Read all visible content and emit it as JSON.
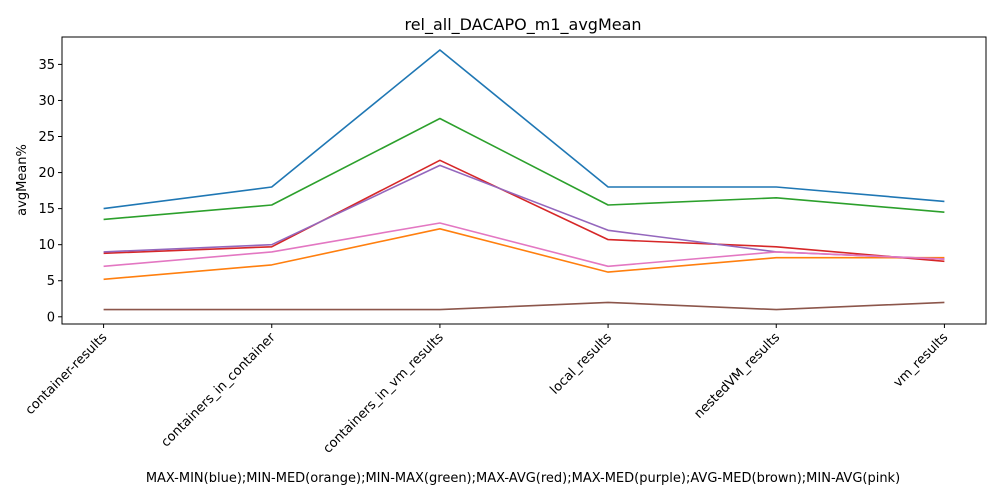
{
  "chart_data": {
    "type": "line",
    "title": "rel_all_DACAPO_m1_avgMean",
    "xlabel": "MAX-MIN(blue);MIN-MED(orange);MIN-MAX(green);MAX-AVG(red);MAX-MED(purple);AVG-MED(brown);MIN-AVG(pink)",
    "ylabel": "avgMean%",
    "categories": [
      "container-results",
      "containers_in_container",
      "containers_in_vm_results",
      "local_results",
      "nestedVM_results",
      "vm_results"
    ],
    "ylim": [
      -1,
      38.8
    ],
    "yticks": [
      0,
      5,
      10,
      15,
      20,
      25,
      30,
      35
    ],
    "grid": false,
    "series": [
      {
        "color": "#1f77b4",
        "values": [
          15.0,
          18.0,
          37.0,
          18.0,
          18.0,
          16.0
        ]
      },
      {
        "color": "#ff7f0e",
        "values": [
          5.2,
          7.2,
          12.2,
          6.2,
          8.2,
          8.2
        ]
      },
      {
        "color": "#2ca02c",
        "values": [
          13.5,
          15.5,
          27.5,
          15.5,
          16.5,
          14.5
        ]
      },
      {
        "color": "#d62728",
        "values": [
          8.8,
          9.7,
          21.7,
          10.7,
          9.7,
          7.7
        ]
      },
      {
        "color": "#9467bd",
        "values": [
          9.0,
          10.0,
          21.0,
          12.0,
          9.0,
          8.0
        ]
      },
      {
        "color": "#8c564b",
        "values": [
          1.0,
          1.0,
          1.0,
          2.0,
          1.0,
          2.0
        ]
      },
      {
        "color": "#e377c2",
        "values": [
          7.0,
          9.0,
          13.0,
          7.0,
          9.0,
          8.0
        ]
      }
    ]
  }
}
